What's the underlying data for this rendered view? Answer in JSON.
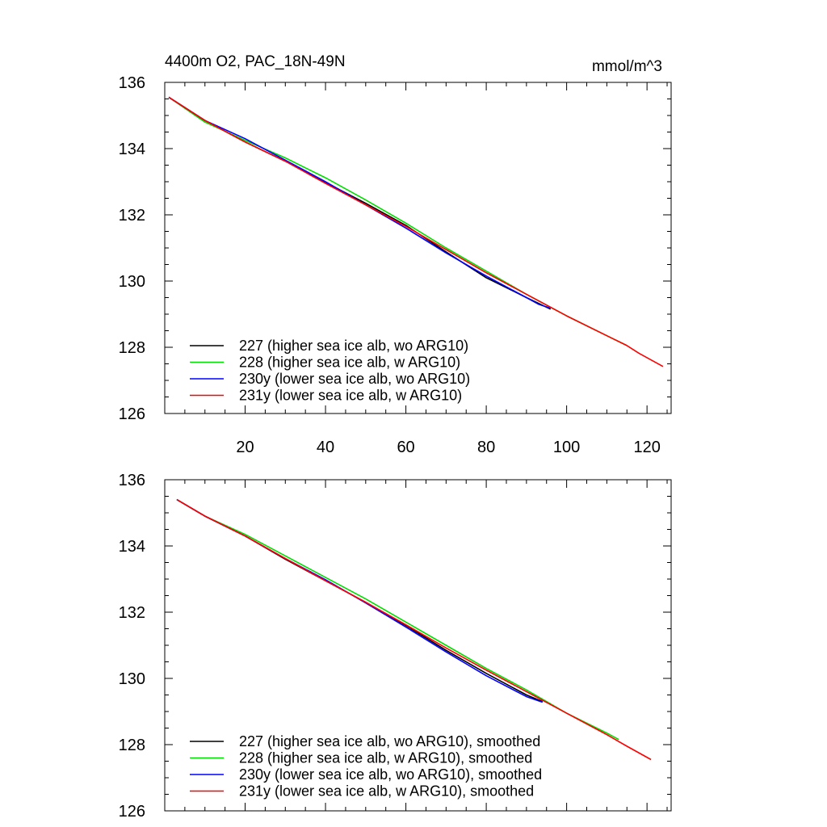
{
  "figure": {
    "title_left": "4400m O2, PAC_18N-49N",
    "title_right": "mmol/m^3"
  },
  "chart_data": [
    {
      "type": "line",
      "xlim": [
        0,
        126
      ],
      "ylim": [
        126,
        136
      ],
      "x_ticks": [
        20,
        40,
        60,
        80,
        100,
        120
      ],
      "y_ticks": [
        126,
        128,
        130,
        132,
        134,
        136
      ],
      "grid": false,
      "legend_position": "bottom-left",
      "series": [
        {
          "name": "227 (higher sea ice alb, wo ARG10)",
          "color": "#000000",
          "x": [
            1,
            10,
            20,
            30,
            40,
            50,
            60,
            70,
            80,
            90,
            96
          ],
          "y": [
            135.55,
            134.85,
            134.2,
            133.62,
            132.98,
            132.35,
            131.68,
            130.88,
            130.1,
            129.5,
            129.15
          ]
        },
        {
          "name": "228 (higher sea ice alb, w ARG10)",
          "color": "#00dd00",
          "x": [
            1,
            10,
            20,
            30,
            40,
            50,
            60,
            70,
            80,
            90,
            100,
            110,
            115
          ],
          "y": [
            135.55,
            134.8,
            134.25,
            133.72,
            133.12,
            132.45,
            131.75,
            131.0,
            130.3,
            129.6,
            128.95,
            128.35,
            128.05
          ]
        },
        {
          "name": "230y (lower sea ice alb, wo ARG10)",
          "color": "#0000ff",
          "x": [
            1,
            10,
            20,
            30,
            40,
            50,
            60,
            70,
            80,
            90,
            93,
            96
          ],
          "y": [
            135.55,
            134.85,
            134.3,
            133.65,
            133.0,
            132.3,
            131.6,
            130.85,
            130.15,
            129.5,
            129.3,
            129.18
          ]
        },
        {
          "name": "231y (lower sea ice alb, w ARG10)",
          "color": "#ff0000",
          "x": [
            1,
            10,
            20,
            30,
            40,
            50,
            60,
            70,
            80,
            90,
            100,
            110,
            115,
            118,
            124
          ],
          "y": [
            135.55,
            134.85,
            134.2,
            133.62,
            132.95,
            132.3,
            131.65,
            130.95,
            130.25,
            129.6,
            128.95,
            128.35,
            128.05,
            127.82,
            127.42
          ]
        }
      ]
    },
    {
      "type": "line",
      "xlim": [
        0,
        126
      ],
      "ylim": [
        126,
        136
      ],
      "x_ticks": [
        20,
        40,
        60,
        80,
        100,
        120
      ],
      "y_ticks": [
        126,
        128,
        130,
        132,
        134,
        136
      ],
      "show_x_tick_labels": false,
      "grid": false,
      "legend_position": "bottom-left",
      "series": [
        {
          "name": "227 (higher sea ice alb, wo ARG10), smoothed",
          "color": "#000000",
          "x": [
            3,
            10,
            20,
            30,
            40,
            50,
            60,
            70,
            80,
            90,
            94
          ],
          "y": [
            135.4,
            134.9,
            134.3,
            133.6,
            132.95,
            132.3,
            131.6,
            130.85,
            130.15,
            129.5,
            129.3
          ]
        },
        {
          "name": "228 (higher sea ice alb, w ARG10), smoothed",
          "color": "#00dd00",
          "x": [
            3,
            10,
            20,
            30,
            40,
            50,
            60,
            70,
            80,
            90,
            100,
            110,
            113
          ],
          "y": [
            135.4,
            134.9,
            134.35,
            133.7,
            133.05,
            132.4,
            131.7,
            131.0,
            130.3,
            129.65,
            128.95,
            128.35,
            128.15
          ]
        },
        {
          "name": "230y (lower sea ice alb, wo ARG10), smoothed",
          "color": "#0000ff",
          "x": [
            3,
            10,
            20,
            30,
            40,
            50,
            60,
            70,
            80,
            90,
            94
          ],
          "y": [
            135.4,
            134.9,
            134.3,
            133.62,
            132.98,
            132.28,
            131.55,
            130.8,
            130.08,
            129.45,
            129.28
          ]
        },
        {
          "name": "231y (lower sea ice alb, w ARG10), smoothed",
          "color": "#ff0000",
          "x": [
            3,
            10,
            20,
            30,
            40,
            50,
            60,
            70,
            80,
            90,
            100,
            110,
            115,
            121
          ],
          "y": [
            135.4,
            134.9,
            134.3,
            133.62,
            132.95,
            132.3,
            131.62,
            130.92,
            130.25,
            129.6,
            128.95,
            128.3,
            127.95,
            127.55
          ]
        }
      ]
    }
  ]
}
